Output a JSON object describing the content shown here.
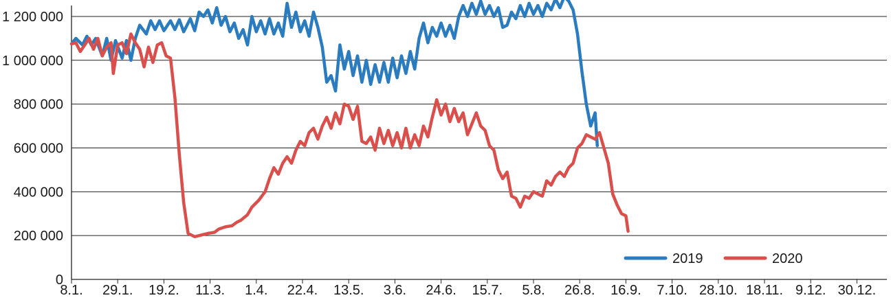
{
  "chart_data": {
    "type": "line",
    "title": "",
    "xlabel": "",
    "ylabel": "",
    "ylim": [
      0,
      1250000
    ],
    "grid": "horizontal",
    "legend_position": "bottom-right",
    "x_tick_labels": [
      "8.1.",
      "29.1.",
      "19.2.",
      "11.3.",
      "1.4.",
      "22.4.",
      "13.5.",
      "3.6.",
      "24.6.",
      "15.7.",
      "5.8.",
      "26.8.",
      "16.9.",
      "7.10.",
      "28.10.",
      "18.11.",
      "9.12.",
      "30.12."
    ],
    "y_tick_labels": [
      "0",
      "200 000",
      "400 000",
      "600 000",
      "800 000",
      "1 000 000",
      "1 200 000"
    ],
    "y_tick_values": [
      0,
      200000,
      400000,
      600000,
      800000,
      1000000,
      1200000
    ],
    "x_tick_spacing_days": 21,
    "series": [
      {
        "name": "2019",
        "color": "#2b7bbf",
        "points": [
          [
            0,
            1075000
          ],
          [
            2,
            1100000
          ],
          [
            5,
            1070000
          ],
          [
            7,
            1110000
          ],
          [
            9,
            1070000
          ],
          [
            11,
            1100000
          ],
          [
            14,
            1020000
          ],
          [
            16,
            1100000
          ],
          [
            18,
            1000000
          ],
          [
            20,
            1090000
          ],
          [
            23,
            1010000
          ],
          [
            25,
            1090000
          ],
          [
            27,
            1000000
          ],
          [
            29,
            1100000
          ],
          [
            31,
            1160000
          ],
          [
            34,
            1120000
          ],
          [
            36,
            1180000
          ],
          [
            38,
            1140000
          ],
          [
            40,
            1180000
          ],
          [
            42,
            1135000
          ],
          [
            45,
            1180000
          ],
          [
            47,
            1140000
          ],
          [
            49,
            1185000
          ],
          [
            51,
            1130000
          ],
          [
            54,
            1190000
          ],
          [
            56,
            1135000
          ],
          [
            58,
            1220000
          ],
          [
            60,
            1200000
          ],
          [
            62,
            1230000
          ],
          [
            64,
            1170000
          ],
          [
            66,
            1240000
          ],
          [
            68,
            1160000
          ],
          [
            70,
            1200000
          ],
          [
            72,
            1130000
          ],
          [
            74,
            1170000
          ],
          [
            76,
            1100000
          ],
          [
            78,
            1140000
          ],
          [
            80,
            1070000
          ],
          [
            82,
            1200000
          ],
          [
            84,
            1130000
          ],
          [
            86,
            1180000
          ],
          [
            88,
            1120000
          ],
          [
            90,
            1190000
          ],
          [
            92,
            1120000
          ],
          [
            94,
            1170000
          ],
          [
            96,
            1110000
          ],
          [
            98,
            1260000
          ],
          [
            100,
            1150000
          ],
          [
            102,
            1220000
          ],
          [
            104,
            1130000
          ],
          [
            106,
            1180000
          ],
          [
            108,
            1110000
          ],
          [
            110,
            1220000
          ],
          [
            112,
            1150000
          ],
          [
            114,
            1060000
          ],
          [
            116,
            900000
          ],
          [
            118,
            930000
          ],
          [
            120,
            860000
          ],
          [
            122,
            1070000
          ],
          [
            124,
            960000
          ],
          [
            126,
            1040000
          ],
          [
            128,
            930000
          ],
          [
            130,
            1020000
          ],
          [
            132,
            900000
          ],
          [
            134,
            1000000
          ],
          [
            136,
            890000
          ],
          [
            138,
            980000
          ],
          [
            140,
            900000
          ],
          [
            142,
            990000
          ],
          [
            144,
            900000
          ],
          [
            146,
            1010000
          ],
          [
            148,
            920000
          ],
          [
            150,
            1020000
          ],
          [
            152,
            940000
          ],
          [
            154,
            1040000
          ],
          [
            156,
            960000
          ],
          [
            158,
            1100000
          ],
          [
            160,
            1170000
          ],
          [
            162,
            1080000
          ],
          [
            164,
            1150000
          ],
          [
            166,
            1110000
          ],
          [
            168,
            1170000
          ],
          [
            170,
            1110000
          ],
          [
            172,
            1160000
          ],
          [
            174,
            1100000
          ],
          [
            176,
            1200000
          ],
          [
            178,
            1250000
          ],
          [
            180,
            1200000
          ],
          [
            182,
            1260000
          ],
          [
            184,
            1210000
          ],
          [
            186,
            1270000
          ],
          [
            188,
            1210000
          ],
          [
            190,
            1250000
          ],
          [
            192,
            1200000
          ],
          [
            194,
            1240000
          ],
          [
            196,
            1150000
          ],
          [
            198,
            1160000
          ],
          [
            200,
            1220000
          ],
          [
            202,
            1190000
          ],
          [
            204,
            1250000
          ],
          [
            206,
            1200000
          ],
          [
            208,
            1260000
          ],
          [
            210,
            1210000
          ],
          [
            212,
            1250000
          ],
          [
            214,
            1200000
          ],
          [
            216,
            1260000
          ],
          [
            218,
            1230000
          ],
          [
            220,
            1280000
          ],
          [
            222,
            1240000
          ],
          [
            224,
            1290000
          ],
          [
            226,
            1270000
          ],
          [
            228,
            1230000
          ],
          [
            230,
            1120000
          ],
          [
            232,
            950000
          ],
          [
            234,
            800000
          ],
          [
            236,
            700000
          ],
          [
            238,
            760000
          ],
          [
            239,
            610000
          ]
        ]
      },
      {
        "name": "2020",
        "color": "#d94f4c",
        "points": [
          [
            0,
            1075000
          ],
          [
            2,
            1080000
          ],
          [
            4,
            1040000
          ],
          [
            6,
            1070000
          ],
          [
            8,
            1100000
          ],
          [
            10,
            1050000
          ],
          [
            12,
            1100000
          ],
          [
            14,
            1020000
          ],
          [
            16,
            1060000
          ],
          [
            18,
            1080000
          ],
          [
            19,
            940000
          ],
          [
            21,
            1070000
          ],
          [
            23,
            1080000
          ],
          [
            25,
            1030000
          ],
          [
            27,
            1120000
          ],
          [
            29,
            1080000
          ],
          [
            31,
            1050000
          ],
          [
            33,
            970000
          ],
          [
            35,
            1060000
          ],
          [
            37,
            990000
          ],
          [
            39,
            1070000
          ],
          [
            41,
            1080000
          ],
          [
            43,
            1020000
          ],
          [
            45,
            1010000
          ],
          [
            47,
            830000
          ],
          [
            49,
            570000
          ],
          [
            51,
            350000
          ],
          [
            53,
            210000
          ],
          [
            56,
            195000
          ],
          [
            58,
            200000
          ],
          [
            60,
            205000
          ],
          [
            62,
            210000
          ],
          [
            65,
            215000
          ],
          [
            67,
            230000
          ],
          [
            70,
            240000
          ],
          [
            73,
            245000
          ],
          [
            75,
            260000
          ],
          [
            77,
            270000
          ],
          [
            80,
            295000
          ],
          [
            82,
            330000
          ],
          [
            85,
            360000
          ],
          [
            88,
            400000
          ],
          [
            90,
            460000
          ],
          [
            92,
            510000
          ],
          [
            94,
            480000
          ],
          [
            96,
            530000
          ],
          [
            98,
            560000
          ],
          [
            100,
            530000
          ],
          [
            102,
            590000
          ],
          [
            104,
            630000
          ],
          [
            106,
            610000
          ],
          [
            108,
            670000
          ],
          [
            110,
            690000
          ],
          [
            112,
            640000
          ],
          [
            114,
            700000
          ],
          [
            116,
            740000
          ],
          [
            118,
            690000
          ],
          [
            120,
            760000
          ],
          [
            122,
            710000
          ],
          [
            124,
            800000
          ],
          [
            126,
            790000
          ],
          [
            128,
            730000
          ],
          [
            130,
            790000
          ],
          [
            132,
            630000
          ],
          [
            134,
            620000
          ],
          [
            136,
            650000
          ],
          [
            138,
            590000
          ],
          [
            140,
            690000
          ],
          [
            142,
            620000
          ],
          [
            144,
            680000
          ],
          [
            146,
            610000
          ],
          [
            148,
            670000
          ],
          [
            150,
            600000
          ],
          [
            152,
            690000
          ],
          [
            154,
            600000
          ],
          [
            156,
            660000
          ],
          [
            158,
            610000
          ],
          [
            160,
            700000
          ],
          [
            162,
            650000
          ],
          [
            164,
            740000
          ],
          [
            166,
            820000
          ],
          [
            168,
            750000
          ],
          [
            170,
            800000
          ],
          [
            172,
            720000
          ],
          [
            174,
            780000
          ],
          [
            176,
            720000
          ],
          [
            178,
            760000
          ],
          [
            180,
            660000
          ],
          [
            182,
            710000
          ],
          [
            184,
            760000
          ],
          [
            186,
            700000
          ],
          [
            188,
            680000
          ],
          [
            190,
            610000
          ],
          [
            192,
            590000
          ],
          [
            194,
            500000
          ],
          [
            196,
            460000
          ],
          [
            198,
            490000
          ],
          [
            200,
            380000
          ],
          [
            202,
            370000
          ],
          [
            204,
            330000
          ],
          [
            206,
            380000
          ],
          [
            208,
            370000
          ],
          [
            210,
            400000
          ],
          [
            212,
            390000
          ],
          [
            214,
            380000
          ],
          [
            216,
            450000
          ],
          [
            218,
            430000
          ],
          [
            220,
            470000
          ],
          [
            222,
            490000
          ],
          [
            224,
            470000
          ],
          [
            226,
            510000
          ],
          [
            228,
            530000
          ],
          [
            230,
            600000
          ],
          [
            232,
            620000
          ],
          [
            234,
            660000
          ],
          [
            236,
            650000
          ],
          [
            238,
            640000
          ],
          [
            240,
            670000
          ],
          [
            242,
            600000
          ],
          [
            244,
            530000
          ],
          [
            246,
            390000
          ],
          [
            248,
            340000
          ],
          [
            250,
            300000
          ],
          [
            252,
            290000
          ],
          [
            253,
            220000
          ]
        ]
      }
    ]
  }
}
